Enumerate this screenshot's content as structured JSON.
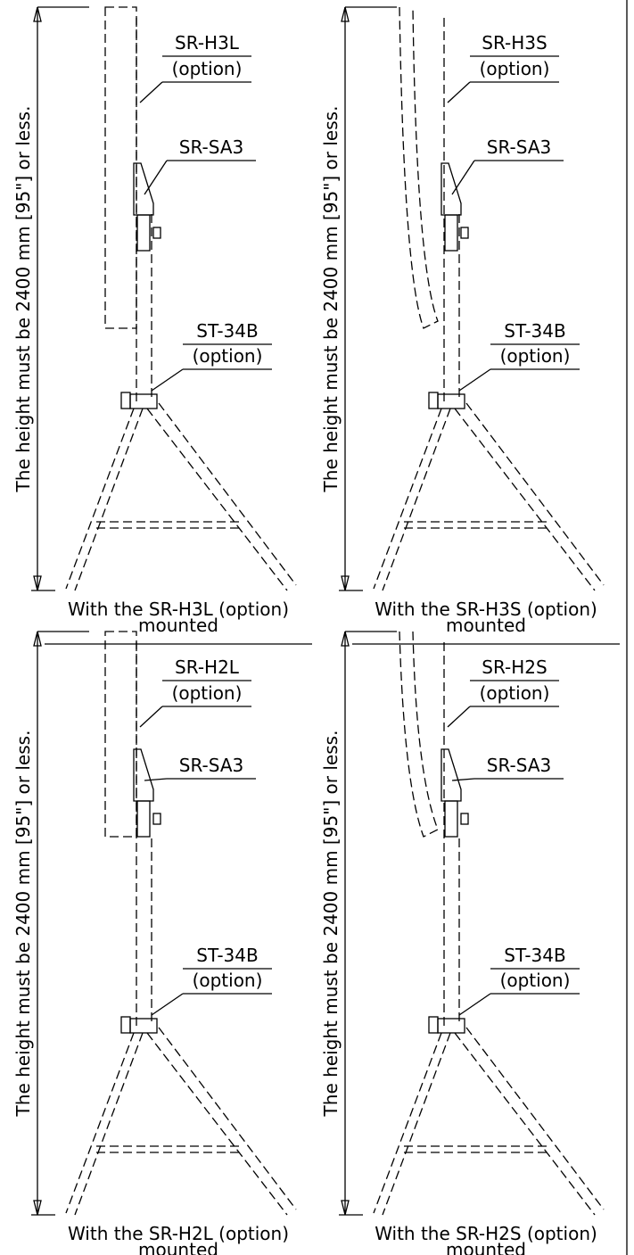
{
  "panels": [
    {
      "height_label": "The height must be 2400 mm [95\"] or less.",
      "head_label": "SR-H3L",
      "head_option": "(option)",
      "bracket_label": "SR-SA3",
      "stand_label": "ST-34B",
      "stand_option": "(option)",
      "caption": "With the SR-H3L (option)",
      "caption_line2": "mounted"
    },
    {
      "height_label": "The height must be 2400 mm [95\"] or less.",
      "head_label": "SR-H3S",
      "head_option": "(option)",
      "bracket_label": "SR-SA3",
      "stand_label": "ST-34B",
      "stand_option": "(option)",
      "caption": "With the SR-H3S (option)",
      "caption_line2": "mounted"
    },
    {
      "height_label": "The height must be 2400 mm [95\"] or less.",
      "head_label": "SR-H2L",
      "head_option": "(option)",
      "bracket_label": "SR-SA3",
      "stand_label": "ST-34B",
      "stand_option": "(option)",
      "caption": "With the SR-H2L (option)",
      "caption_line2": "mounted"
    },
    {
      "height_label": "The height must be 2400 mm [95\"] or less.",
      "head_label": "SR-H2S",
      "head_option": "(option)",
      "bracket_label": "SR-SA3",
      "stand_label": "ST-34B",
      "stand_option": "(option)",
      "caption": "With the SR-H2S (option)",
      "caption_line2": "mounted"
    }
  ]
}
